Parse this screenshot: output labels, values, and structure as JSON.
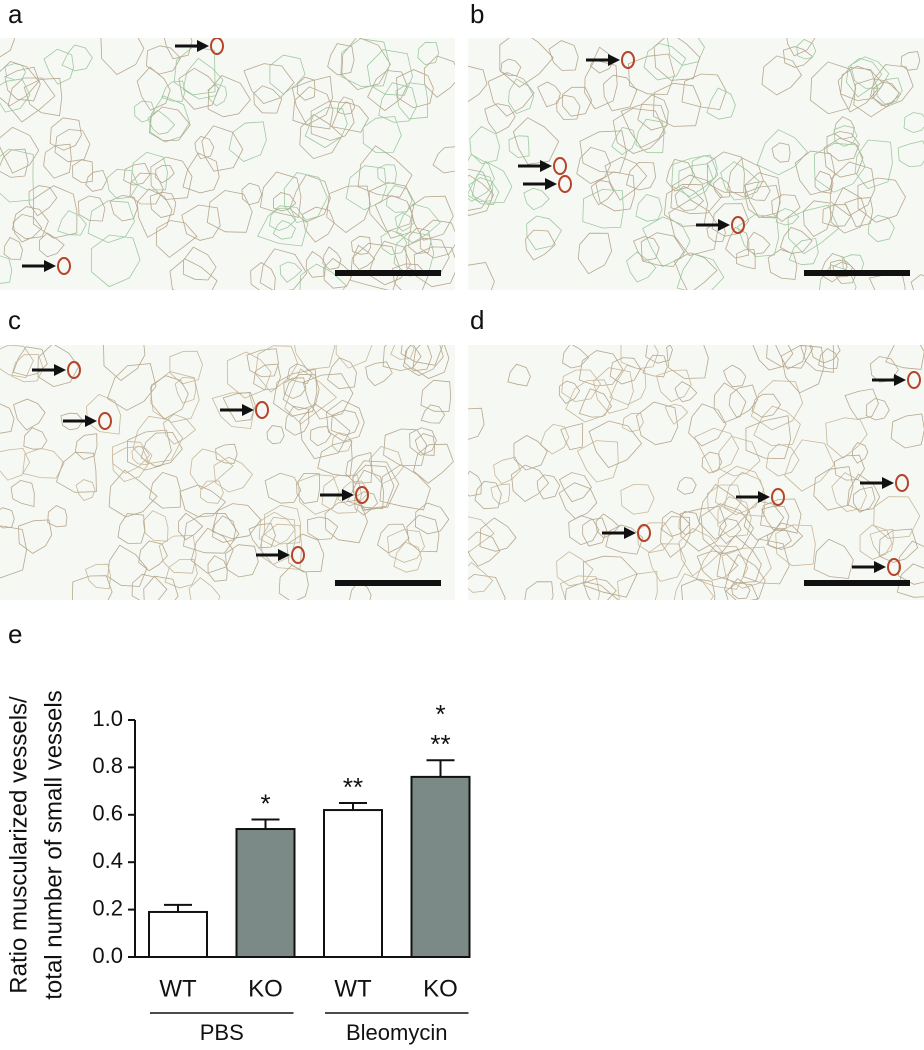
{
  "panels": [
    "a",
    "b",
    "c",
    "d"
  ],
  "chart_data": {
    "type": "bar",
    "panel_label": "e",
    "y_label": [
      "Ratio muscularized vessels/",
      "total number of small vessels"
    ],
    "categories": [
      "WT",
      "KO",
      "WT",
      "KO"
    ],
    "groups": [
      {
        "name": "PBS",
        "span": [
          0,
          1
        ]
      },
      {
        "name": "Bleomycin",
        "span": [
          2,
          3
        ]
      }
    ],
    "values": [
      0.19,
      0.54,
      0.62,
      0.76
    ],
    "errors": [
      0.03,
      0.04,
      0.03,
      0.07
    ],
    "colors": [
      "#ffffff",
      "#7b8a87",
      "#ffffff",
      "#7b8a87"
    ],
    "significance": [
      [],
      [
        "*"
      ],
      [
        "**"
      ],
      [
        "*",
        "**"
      ]
    ],
    "ylim": [
      0,
      1.0
    ],
    "yticks": [
      {
        "value": 0,
        "label": "0.0"
      },
      {
        "value": 0.2,
        "label": "0.2"
      },
      {
        "value": 0.4,
        "label": "0.4"
      },
      {
        "value": 0.6,
        "label": "0.6"
      },
      {
        "value": 0.8,
        "label": "0.8"
      },
      {
        "value": 1.0,
        "label": "1.0"
      }
    ]
  }
}
